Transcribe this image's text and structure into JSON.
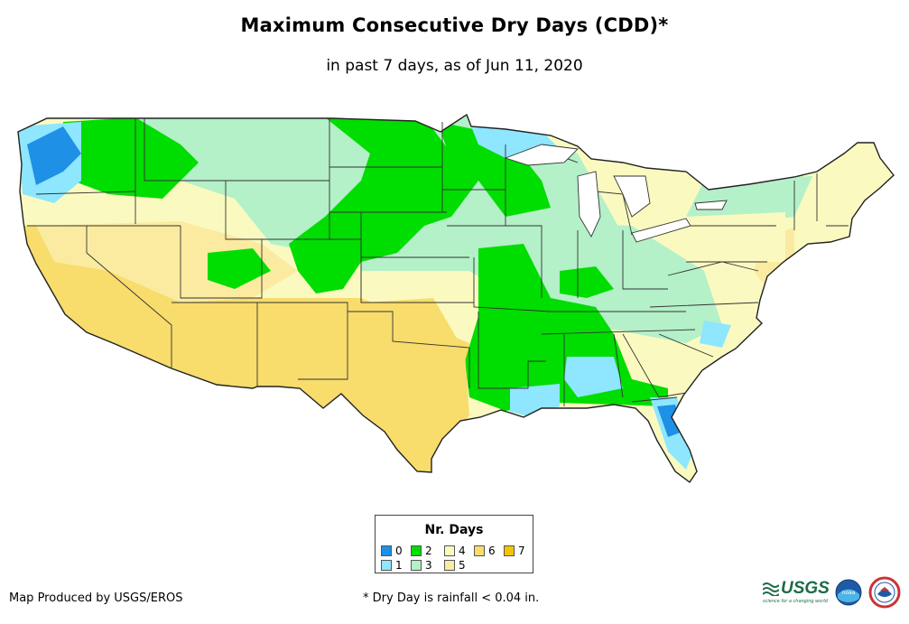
{
  "title": "Maximum Consecutive Dry Days (CDD)*",
  "subtitle": "in past 7 days, as of Jun 11, 2020",
  "legend": {
    "title": "Nr. Days",
    "items": [
      {
        "label": "0",
        "color": "#1e90e6"
      },
      {
        "label": "1",
        "color": "#8ee6ff"
      },
      {
        "label": "2",
        "color": "#00dd00"
      },
      {
        "label": "3",
        "color": "#b4f0c8"
      },
      {
        "label": "4",
        "color": "#fafac0"
      },
      {
        "label": "5",
        "color": "#fbeba0"
      },
      {
        "label": "6",
        "color": "#f8dc6c"
      },
      {
        "label": "7",
        "color": "#f4c400"
      }
    ]
  },
  "footer": {
    "producer": "Map Produced by USGS/EROS",
    "note": "* Dry Day is rainfall < 0.04 in."
  },
  "logos": {
    "usgs": "USGS",
    "usgs_tagline": "science for a changing world",
    "noaa": "noaa"
  },
  "colors": {
    "outline": "#222222",
    "state_line": "#444444"
  }
}
